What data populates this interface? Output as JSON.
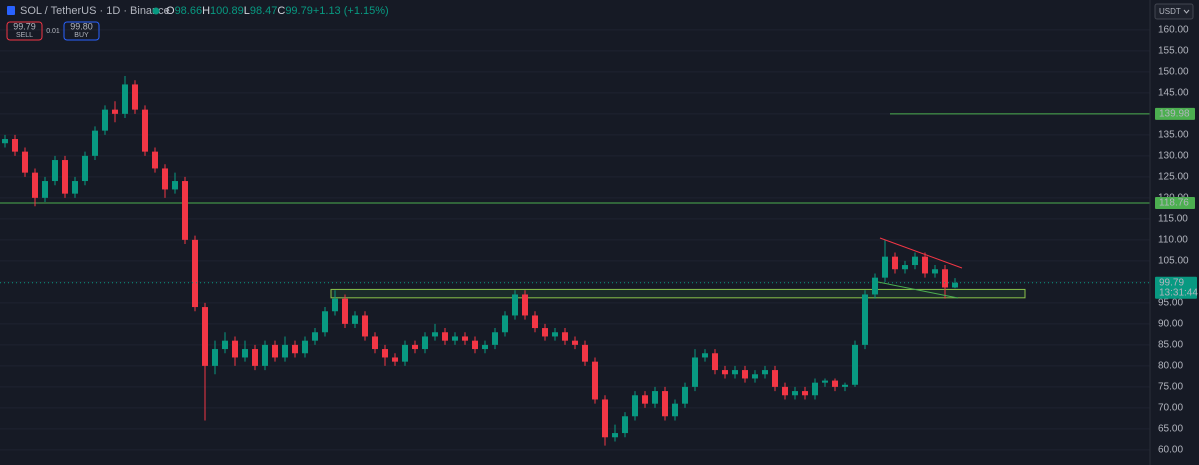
{
  "header": {
    "symbol": "SOL / TetherUS · 1D · Binance",
    "ohlc": [
      {
        "key": "O",
        "value": "98.66"
      },
      {
        "key": "H",
        "value": "100.89"
      },
      {
        "key": "L",
        "value": "98.47"
      },
      {
        "key": "C",
        "value": "99.79"
      }
    ],
    "change": "+1.13 (+1.15%)",
    "sell_price": "99.79",
    "sell": "SELL",
    "spread": "0.01",
    "buy_price": "99.80",
    "buy": "BUY",
    "currency": "USDT"
  },
  "chart_data": {
    "type": "candlestick",
    "title": "SOL / TetherUS · 1D · Binance",
    "up_color": "#089981",
    "down_color": "#f23645",
    "open": [
      133,
      134,
      131,
      126,
      120,
      124,
      129,
      121,
      124,
      130,
      136,
      141,
      140,
      147,
      141,
      131,
      127,
      122,
      124,
      110,
      94,
      80,
      84,
      86,
      82,
      84,
      80,
      85,
      82,
      85,
      83,
      86,
      88,
      93,
      96,
      90,
      92,
      87,
      84,
      82,
      81,
      85,
      84,
      87,
      88,
      86,
      87,
      86,
      84,
      85,
      88,
      92,
      97,
      92,
      89,
      87,
      88,
      86,
      85,
      81,
      72,
      63,
      64,
      68,
      73,
      71,
      74,
      68,
      71,
      75,
      82,
      83,
      79,
      78,
      79,
      77,
      78,
      79,
      75,
      73,
      74,
      73,
      76,
      76.5,
      75,
      75.5,
      85,
      97,
      101,
      106,
      103,
      104,
      106,
      102,
      103,
      98.66
    ],
    "high": [
      135,
      135,
      132,
      127,
      125,
      130,
      130,
      125,
      131,
      137,
      142,
      143,
      149,
      148,
      142,
      132,
      128,
      126,
      125,
      111,
      95,
      86,
      88,
      87,
      86,
      85,
      86,
      86,
      87,
      86,
      87,
      89,
      94,
      98,
      97,
      93,
      93,
      88,
      85,
      83,
      86,
      86,
      88,
      90,
      89,
      88,
      88,
      87,
      86,
      89,
      93,
      98,
      98,
      93,
      90,
      89,
      89,
      87,
      86,
      82,
      73,
      66,
      69,
      74,
      74,
      75,
      75,
      72,
      76,
      84,
      84,
      84,
      80,
      80,
      80,
      79,
      80,
      80,
      76,
      75,
      75,
      77,
      77,
      77,
      76,
      86,
      98,
      102,
      110,
      107,
      105,
      107,
      107,
      104,
      104,
      100.89
    ],
    "low": [
      132,
      130,
      125,
      118,
      119,
      123,
      120,
      120,
      123,
      129,
      135,
      138,
      139,
      140,
      130,
      126,
      120,
      121,
      109,
      93,
      67,
      78,
      83,
      80,
      81,
      79,
      79,
      81,
      81,
      82,
      82,
      85,
      87,
      92,
      89,
      89,
      86,
      83,
      80,
      80,
      80,
      83,
      83,
      86,
      85,
      85,
      85,
      83,
      83,
      84,
      87,
      91,
      91,
      88,
      86,
      86,
      85,
      84,
      80,
      71,
      61,
      62,
      63,
      67,
      70,
      70,
      67,
      67,
      70,
      74,
      81,
      78,
      77,
      77,
      76,
      76,
      77,
      74,
      72,
      72,
      72,
      72,
      75,
      74,
      74,
      75,
      84,
      96,
      100,
      102,
      102,
      103,
      101,
      101,
      96,
      98.47
    ],
    "close": [
      134,
      131,
      126,
      120,
      124,
      129,
      121,
      124,
      130,
      136,
      141,
      140,
      147,
      141,
      131,
      127,
      122,
      124,
      110,
      94,
      80,
      84,
      86,
      82,
      84,
      80,
      85,
      82,
      85,
      83,
      86,
      88,
      93,
      96,
      90,
      92,
      87,
      84,
      82,
      81,
      85,
      84,
      87,
      88,
      86,
      87,
      86,
      84,
      85,
      88,
      92,
      97,
      92,
      89,
      87,
      88,
      86,
      85,
      81,
      72,
      63,
      64,
      68,
      73,
      71,
      74,
      68,
      71,
      75,
      82,
      83,
      79,
      78,
      79,
      77,
      78,
      79,
      75,
      73,
      74,
      73,
      76,
      76.5,
      75,
      75.5,
      85,
      97,
      101,
      106,
      103,
      104,
      106,
      102,
      103,
      98.66,
      99.79
    ],
    "ylim": [
      56.4,
      167.1
    ],
    "yticks": [
      {
        "value": 60,
        "label": "60.00"
      },
      {
        "value": 65,
        "label": "65.00"
      },
      {
        "value": 70,
        "label": "70.00"
      },
      {
        "value": 75,
        "label": "75.00"
      },
      {
        "value": 80,
        "label": "80.00"
      },
      {
        "value": 85,
        "label": "85.00"
      },
      {
        "value": 90,
        "label": "90.00"
      },
      {
        "value": 95,
        "label": "95.00"
      },
      {
        "value": 100,
        "label": "100.00"
      },
      {
        "value": 105,
        "label": "105.00"
      },
      {
        "value": 110,
        "label": "110.00"
      },
      {
        "value": 115,
        "label": "115.00"
      },
      {
        "value": 120,
        "label": "120.00"
      },
      {
        "value": 125,
        "label": "125.00"
      },
      {
        "value": 130,
        "label": "130.00"
      },
      {
        "value": 135,
        "label": "135.00"
      },
      {
        "value": 140,
        "label": "140.00"
      },
      {
        "value": 145,
        "label": "145.00"
      },
      {
        "value": 150,
        "label": "150.00"
      },
      {
        "value": 155,
        "label": "155.00"
      },
      {
        "value": 160,
        "label": "160.00"
      }
    ],
    "grid": true,
    "levels": [
      {
        "value": 139.98,
        "label": "139.98",
        "color": "#4caf50"
      },
      {
        "value": 118.76,
        "label": "118.76",
        "color": "#4caf50"
      }
    ],
    "zone": [
      96.2,
      98.2
    ],
    "last": {
      "value": 99.79,
      "label": "99.79",
      "countdown": "13:31:44",
      "color": "#089981"
    }
  }
}
